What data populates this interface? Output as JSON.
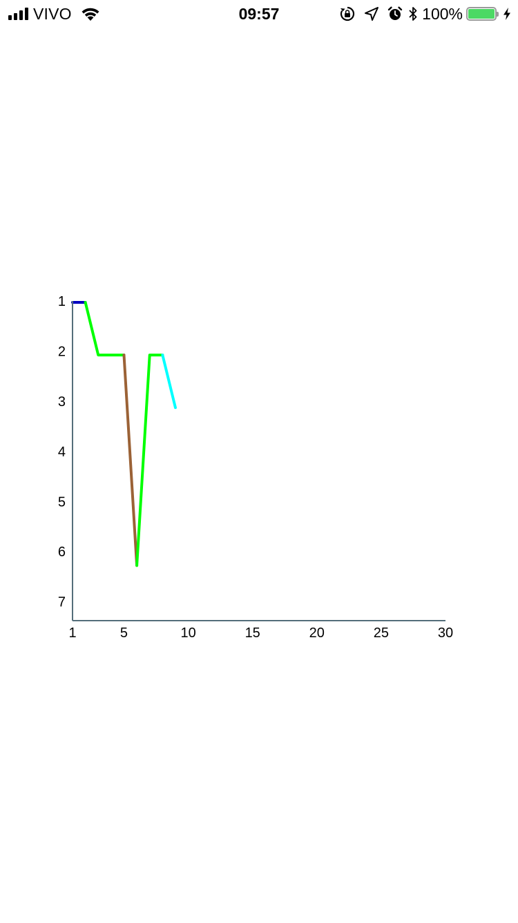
{
  "status_bar": {
    "carrier": "VIVO",
    "time": "09:57",
    "battery_percent": "100%",
    "battery_level": 1.0,
    "icons": [
      "signal-icon",
      "wifi-icon",
      "orientation-lock-icon",
      "location-icon",
      "alarm-icon",
      "bluetooth-icon",
      "battery-icon",
      "charging-icon"
    ],
    "battery_color": "#4cd964"
  },
  "chart_data": {
    "type": "line",
    "x_ticks": [
      1,
      5,
      10,
      15,
      20,
      25,
      30
    ],
    "y_ticks": [
      1,
      2,
      3,
      4,
      5,
      6,
      7
    ],
    "xlim": [
      1,
      30
    ],
    "ylim": [
      1,
      7.35
    ],
    "y_inverted": true,
    "axis_color": "#546e7a",
    "segments": [
      {
        "color": "#0000c0",
        "points": [
          [
            1,
            1
          ],
          [
            2,
            1
          ]
        ]
      },
      {
        "color": "#00ff00",
        "points": [
          [
            2,
            1
          ],
          [
            3,
            2.05
          ],
          [
            5,
            2.05
          ]
        ]
      },
      {
        "color": "#9b6236",
        "points": [
          [
            5,
            2.05
          ],
          [
            6,
            6.25
          ]
        ]
      },
      {
        "color": "#00ff00",
        "points": [
          [
            6,
            6.25
          ],
          [
            7,
            2.05
          ],
          [
            8,
            2.05
          ]
        ]
      },
      {
        "color": "#00ffff",
        "points": [
          [
            8,
            2.05
          ],
          [
            9,
            3.1
          ]
        ]
      }
    ]
  }
}
